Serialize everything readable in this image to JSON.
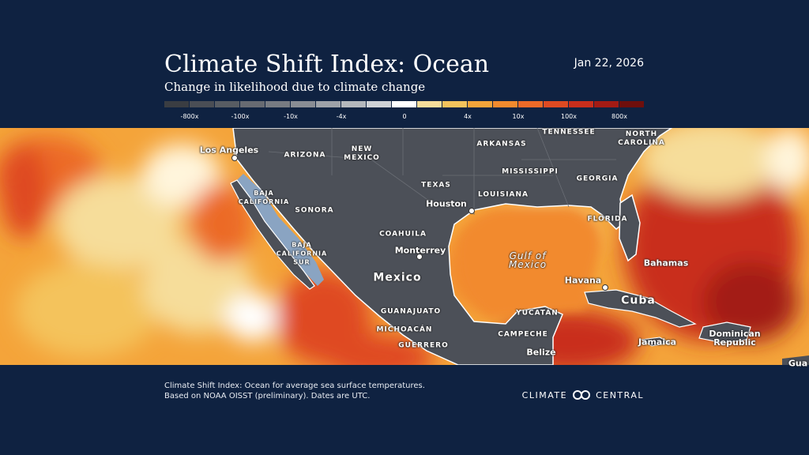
{
  "header": {
    "title": "Climate Shift Index: Ocean",
    "subtitle": "Change in likelihood due to climate change",
    "date": "Jan 22, 2026"
  },
  "legend": {
    "labels": [
      "-800x",
      "-100x",
      "-10x",
      "-4x",
      "0",
      "4x",
      "10x",
      "100x",
      "800x"
    ],
    "colors": [
      "#3a3d42",
      "#4a4e55",
      "#585c63",
      "#676b72",
      "#777b82",
      "#898d94",
      "#9ea2a8",
      "#b4b8bd",
      "#cfd2d6",
      "#ffffff",
      "#f6dd9a",
      "#f4c35c",
      "#f4a43a",
      "#f28a2e",
      "#ec6a28",
      "#df4a22",
      "#c92e1c",
      "#a31b14",
      "#6e0f0c"
    ]
  },
  "map": {
    "labels": [
      "Los Angeles",
      "ARIZONA",
      "NEW MEXICO",
      "ARKANSAS",
      "TENNESSEE",
      "NORTH CAROLINA",
      "MISSISSIPPI",
      "GEORGIA",
      "TEXAS",
      "LOUISIANA",
      "Houston",
      "FLORIDA",
      "BAJA CALIFORNIA",
      "SONORA",
      "BAJA CALIFORNIA SUR",
      "COAHUILA",
      "Monterrey",
      "Mexico",
      "Gulf of Mexico",
      "Havana",
      "Bahamas",
      "Cuba",
      "GUANAJUATO",
      "MICHOACÁN",
      "GUERRERO",
      "YUCATÁN",
      "CAMPECHE",
      "Belize",
      "Jamaica",
      "Dominican Republic",
      "Gua"
    ]
  },
  "footer": {
    "note": [
      "Climate Shift Index: Ocean for average sea surface temperatures.",
      "Based on NOAA OISST (preliminary). Dates are UTC."
    ],
    "logo": "CLIMATE CENTRAL"
  }
}
